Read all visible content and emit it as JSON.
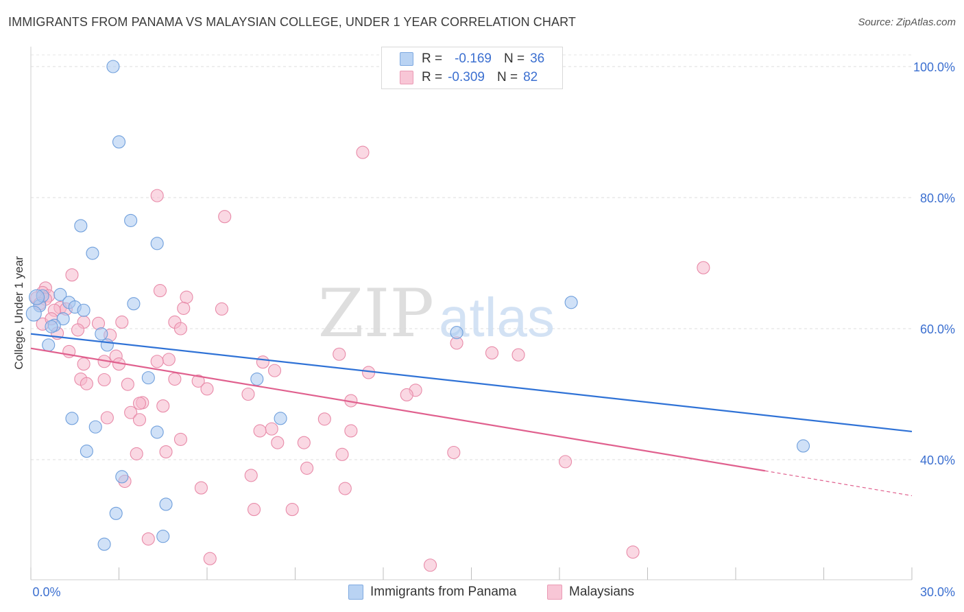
{
  "title": "IMMIGRANTS FROM PANAMA VS MALAYSIAN COLLEGE, UNDER 1 YEAR CORRELATION CHART",
  "source": "Source: ZipAtlas.com",
  "watermark": {
    "zip": "ZIP",
    "atlas": "atlas"
  },
  "colors": {
    "blue_fill": "#a9c8f0",
    "blue_stroke": "#6f9fdc",
    "blue_line": "#2f72d6",
    "pink_fill": "#f6b8cc",
    "pink_stroke": "#e88aa8",
    "pink_line": "#e0608e",
    "tick_label": "#3b6fd0"
  },
  "legend": {
    "rows": [
      {
        "r_label": "R =",
        "r_value": "-0.169",
        "n_label": "N =",
        "n_value": "36"
      },
      {
        "r_label": "R =",
        "r_value": "-0.309",
        "n_label": "N =",
        "n_value": "82"
      }
    ]
  },
  "bottom_legend": [
    "Immigrants from Panama",
    "Malaysians"
  ],
  "chart_data": {
    "type": "scatter",
    "title": "IMMIGRANTS FROM PANAMA VS MALAYSIAN COLLEGE, UNDER 1 YEAR CORRELATION CHART",
    "xlabel": "",
    "ylabel": "College, Under 1 year",
    "xlim": [
      0,
      30
    ],
    "ylim": [
      20,
      100
    ],
    "x_tick_labels": [
      "0.0%",
      "30.0%"
    ],
    "y_tick_values": [
      40,
      60,
      80,
      100
    ],
    "y_tick_labels": [
      "40.0%",
      "60.0%",
      "80.0%",
      "100.0%"
    ],
    "grid": true,
    "legend_position": "top-center",
    "series": [
      {
        "name": "Immigrants from Panama",
        "color": "#a9c8f0",
        "points": [
          [
            2.8,
            100.0
          ],
          [
            3.0,
            88.5
          ],
          [
            3.4,
            76.5
          ],
          [
            1.7,
            75.7
          ],
          [
            4.3,
            73.0
          ],
          [
            2.1,
            71.5
          ],
          [
            0.3,
            63.5
          ],
          [
            0.4,
            65.0
          ],
          [
            1.0,
            65.2
          ],
          [
            1.3,
            64.0
          ],
          [
            1.5,
            63.3
          ],
          [
            1.8,
            62.8
          ],
          [
            0.1,
            62.3
          ],
          [
            1.1,
            61.5
          ],
          [
            0.8,
            60.5
          ],
          [
            0.7,
            60.3
          ],
          [
            2.4,
            59.2
          ],
          [
            3.5,
            63.8
          ],
          [
            0.6,
            57.5
          ],
          [
            2.6,
            57.5
          ],
          [
            4.0,
            52.5
          ],
          [
            7.7,
            52.3
          ],
          [
            14.5,
            59.4
          ],
          [
            18.4,
            64.0
          ],
          [
            1.4,
            46.3
          ],
          [
            2.2,
            45.0
          ],
          [
            8.5,
            46.3
          ],
          [
            4.3,
            44.2
          ],
          [
            1.9,
            41.3
          ],
          [
            3.1,
            37.4
          ],
          [
            4.6,
            33.2
          ],
          [
            2.9,
            31.8
          ],
          [
            4.5,
            28.3
          ],
          [
            2.5,
            27.1
          ],
          [
            26.3,
            42.1
          ],
          [
            0.2,
            64.8
          ]
        ],
        "trend": {
          "x": [
            0,
            30
          ],
          "y": [
            59.2,
            44.3
          ]
        }
      },
      {
        "name": "Malaysians",
        "color": "#f6b8cc",
        "points": [
          [
            11.3,
            86.9
          ],
          [
            4.3,
            80.3
          ],
          [
            6.6,
            77.1
          ],
          [
            1.4,
            68.2
          ],
          [
            0.5,
            66.2
          ],
          [
            4.4,
            65.8
          ],
          [
            0.4,
            65.5
          ],
          [
            0.6,
            65.0
          ],
          [
            0.2,
            64.7
          ],
          [
            0.5,
            64.5
          ],
          [
            5.3,
            64.8
          ],
          [
            1.0,
            63.2
          ],
          [
            1.2,
            63.0
          ],
          [
            5.2,
            63.1
          ],
          [
            6.5,
            63.0
          ],
          [
            0.8,
            62.8
          ],
          [
            1.8,
            61.0
          ],
          [
            2.3,
            60.8
          ],
          [
            3.1,
            61.0
          ],
          [
            4.9,
            61.0
          ],
          [
            5.1,
            60.0
          ],
          [
            1.6,
            59.8
          ],
          [
            0.9,
            59.3
          ],
          [
            0.4,
            60.7
          ],
          [
            1.3,
            56.5
          ],
          [
            2.9,
            55.8
          ],
          [
            4.7,
            55.3
          ],
          [
            7.9,
            54.9
          ],
          [
            10.5,
            56.1
          ],
          [
            14.5,
            57.8
          ],
          [
            15.7,
            56.3
          ],
          [
            16.6,
            56.0
          ],
          [
            1.8,
            54.6
          ],
          [
            2.5,
            55.0
          ],
          [
            3.0,
            54.6
          ],
          [
            8.3,
            53.6
          ],
          [
            11.5,
            53.3
          ],
          [
            4.3,
            55.0
          ],
          [
            1.7,
            52.3
          ],
          [
            2.5,
            52.2
          ],
          [
            1.9,
            51.6
          ],
          [
            3.3,
            51.5
          ],
          [
            4.9,
            52.3
          ],
          [
            5.7,
            52.0
          ],
          [
            6.0,
            50.8
          ],
          [
            7.4,
            50.0
          ],
          [
            13.1,
            50.6
          ],
          [
            12.8,
            49.9
          ],
          [
            10.9,
            49.0
          ],
          [
            3.8,
            48.7
          ],
          [
            3.7,
            48.6
          ],
          [
            4.5,
            48.2
          ],
          [
            3.4,
            47.2
          ],
          [
            2.6,
            46.4
          ],
          [
            3.7,
            46.1
          ],
          [
            10.0,
            46.2
          ],
          [
            8.2,
            44.7
          ],
          [
            7.8,
            44.4
          ],
          [
            10.9,
            44.4
          ],
          [
            5.1,
            43.1
          ],
          [
            8.4,
            42.6
          ],
          [
            9.3,
            42.6
          ],
          [
            3.6,
            40.9
          ],
          [
            4.6,
            41.2
          ],
          [
            10.6,
            40.8
          ],
          [
            14.4,
            41.1
          ],
          [
            18.2,
            39.7
          ],
          [
            9.4,
            38.7
          ],
          [
            7.5,
            37.6
          ],
          [
            3.2,
            36.7
          ],
          [
            5.8,
            35.7
          ],
          [
            10.7,
            35.6
          ],
          [
            7.6,
            32.4
          ],
          [
            8.9,
            32.4
          ],
          [
            4.0,
            27.9
          ],
          [
            6.1,
            24.9
          ],
          [
            13.6,
            23.9
          ],
          [
            20.5,
            25.9
          ],
          [
            22.9,
            69.3
          ],
          [
            0.3,
            63.8
          ],
          [
            2.7,
            59.0
          ],
          [
            0.7,
            61.5
          ]
        ],
        "trend": {
          "x": [
            0,
            25
          ],
          "y": [
            57.0,
            38.3
          ]
        },
        "trend_extension": {
          "x": [
            25,
            30
          ],
          "y": [
            38.3,
            34.5
          ]
        }
      }
    ]
  }
}
